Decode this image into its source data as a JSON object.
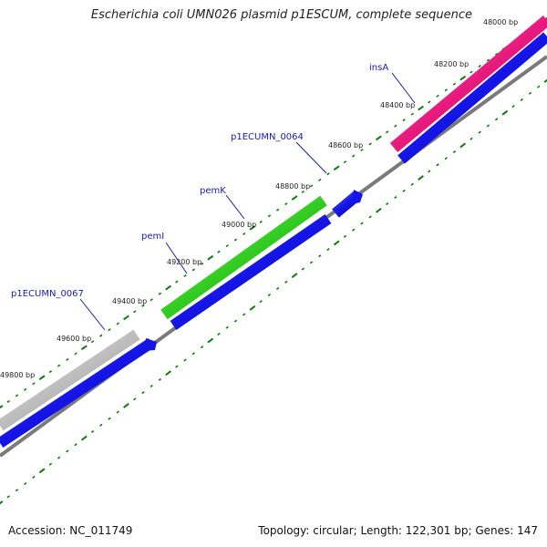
{
  "title": "Escherichia coli UMN026 plasmid p1ESCUM, complete sequence",
  "footer": {
    "accession": "Accession: NC_011749",
    "summary": "Topology: circular; Length: 122,301 bp; Genes: 147"
  },
  "ticks": [
    {
      "label": "48000 bp"
    },
    {
      "label": "48200 bp"
    },
    {
      "label": "48400 bp"
    },
    {
      "label": "48600 bp"
    },
    {
      "label": "48800 bp"
    },
    {
      "label": "49000 bp"
    },
    {
      "label": "49200 bp"
    },
    {
      "label": "49400 bp"
    },
    {
      "label": "49600 bp"
    },
    {
      "label": "49800 bp"
    }
  ],
  "genes": [
    {
      "label": "insA",
      "color": "#e8197d"
    },
    {
      "label": "p1ECUMN_0064",
      "color": "#1a1aa6"
    },
    {
      "label": "pemK",
      "color": "#33cc22"
    },
    {
      "label": "pemI",
      "color": "#1a1aa6"
    },
    {
      "label": "p1ECUMN_0067",
      "color": "#bdbdbd"
    }
  ],
  "colors": {
    "tick": "#0e7a0e",
    "cds": "#1414e6",
    "backbone": "#7a7a7a",
    "label_line": "#1a1aa6"
  }
}
